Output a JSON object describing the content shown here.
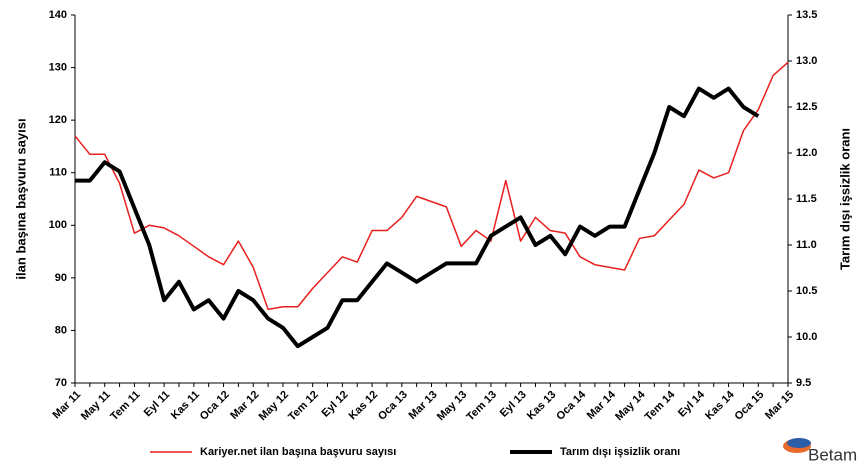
{
  "chart_data": {
    "type": "line",
    "y_label": "ilan başına başvuru sayısı",
    "y2_label": "Tarım dışı işsizlik oranı",
    "logo": "Betam",
    "categories": [
      "Mar 11",
      null,
      "May 11",
      null,
      "Tem 11",
      null,
      "Eyl 11",
      null,
      "Kas 11",
      null,
      "Oca 12",
      null,
      "Mar 12",
      null,
      "May 12",
      null,
      "Tem 12",
      null,
      "Eyl 12",
      null,
      "Kas 12",
      null,
      "Oca 13",
      null,
      "Mar 13",
      null,
      "May 13",
      null,
      "Tem 13",
      null,
      "Eyl 13",
      null,
      "Kas 13",
      null,
      "Oca 14",
      null,
      "Mar 14",
      null,
      "May 14",
      null,
      "Tem 14",
      null,
      "Eyl 14",
      null,
      "Kas 14",
      null,
      "Oca 15",
      null,
      "Mar 15"
    ],
    "series": [
      {
        "name": "Kariyer.net ilan başına başvuru sayısı",
        "color": "#e8201e",
        "width": 1.5,
        "values": [
          117,
          113.5,
          113.5,
          108,
          98.5,
          100,
          99.5,
          98,
          96,
          94,
          92.5,
          97,
          92,
          84,
          84.5,
          84.5,
          88,
          91,
          94,
          93,
          99,
          99,
          101.5,
          105.5,
          104.5,
          103.5,
          96,
          99,
          97,
          108.5,
          97,
          101.5,
          99,
          98.5,
          94,
          92.5,
          92,
          91.5,
          97.5,
          98,
          101,
          104,
          110.5,
          109,
          110,
          118,
          122,
          128.5,
          131
        ]
      },
      {
        "name": "Tarım dışı işsizlik oranı",
        "color": "#000000",
        "width": 4,
        "axis": "y2",
        "values": [
          11.7,
          11.7,
          11.9,
          11.8,
          11.4,
          11.0,
          10.4,
          10.6,
          10.3,
          10.4,
          10.2,
          10.5,
          10.4,
          10.2,
          10.1,
          9.9,
          10.0,
          10.1,
          10.4,
          10.4,
          10.6,
          10.8,
          10.7,
          10.6,
          10.7,
          10.8,
          10.8,
          10.8,
          11.1,
          11.2,
          11.3,
          11.0,
          11.1,
          10.9,
          11.2,
          11.1,
          11.2,
          11.2,
          11.6,
          12.0,
          12.5,
          12.4,
          12.7,
          12.6,
          12.7,
          12.5,
          12.4,
          null,
          null
        ]
      }
    ],
    "ylim": [
      70,
      140
    ],
    "yticks": [
      70,
      80,
      90,
      100,
      110,
      120,
      130,
      140
    ],
    "y2lim": [
      9.5,
      13.5
    ],
    "y2ticks": [
      9.5,
      {
        "value": 10,
        "label": "10.0"
      },
      10.5,
      {
        "value": 11,
        "label": "11.0"
      },
      11.5,
      {
        "value": 12,
        "label": "12.0"
      },
      12.5,
      {
        "value": 13,
        "label": "13.0"
      },
      13.5
    ],
    "grid": false,
    "legend": "bottom"
  }
}
